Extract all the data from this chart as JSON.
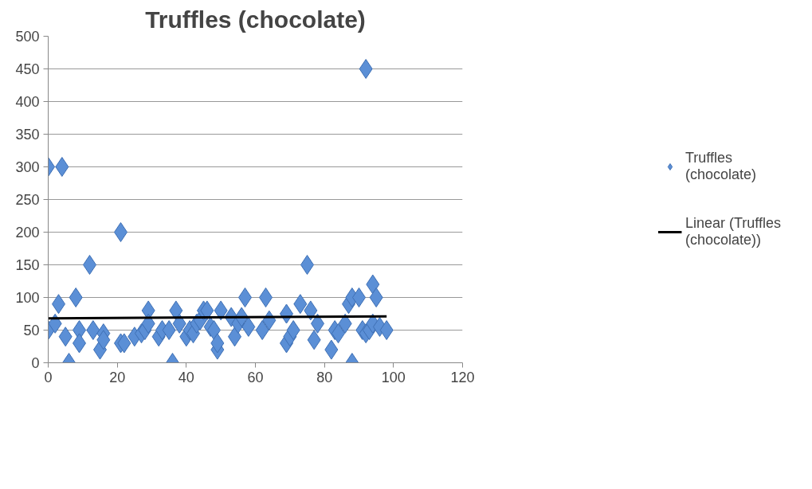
{
  "chart_data": {
    "type": "scatter",
    "title": "Truffles (chocolate)",
    "xlim": [
      0,
      120
    ],
    "xticks": [
      0,
      20,
      40,
      60,
      80,
      100,
      120
    ],
    "ylim": [
      0,
      500
    ],
    "yticks": [
      0,
      50,
      100,
      150,
      200,
      250,
      300,
      350,
      400,
      450,
      500
    ],
    "grid": "y",
    "legend": "right",
    "marker": "diamond",
    "series": [
      {
        "name": "Truffles (chocolate)",
        "color": "#5b8fd6",
        "x": [
          0,
          0,
          2,
          3,
          4,
          5,
          6,
          8,
          9,
          9,
          12,
          13,
          15,
          16,
          16,
          21,
          21,
          22,
          25,
          27,
          28,
          29,
          29,
          32,
          33,
          35,
          36,
          37,
          38,
          40,
          41,
          42,
          43,
          44,
          45,
          46,
          47,
          48,
          49,
          49,
          50,
          53,
          54,
          55,
          56,
          57,
          58,
          62,
          63,
          64,
          69,
          69,
          70,
          71,
          73,
          75,
          76,
          77,
          78,
          82,
          83,
          84,
          86,
          87,
          88,
          88,
          90,
          91,
          92,
          92,
          93,
          94,
          94,
          95,
          96,
          98
        ],
        "values": [
          300,
          50,
          60,
          90,
          300,
          40,
          0,
          100,
          50,
          30,
          150,
          50,
          20,
          45,
          35,
          200,
          30,
          30,
          40,
          45,
          50,
          80,
          60,
          40,
          50,
          50,
          0,
          80,
          60,
          40,
          50,
          45,
          60,
          65,
          80,
          80,
          55,
          50,
          20,
          30,
          80,
          70,
          40,
          60,
          70,
          100,
          55,
          50,
          100,
          65,
          75,
          30,
          40,
          50,
          90,
          150,
          80,
          35,
          60,
          20,
          50,
          45,
          60,
          90,
          0,
          100,
          100,
          50,
          450,
          45,
          50,
          120,
          60,
          100,
          55,
          50
        ]
      },
      {
        "name": "Linear (Truffles (chocolate))",
        "color": "#000000",
        "type": "line",
        "marker": "none",
        "line_style": "solid",
        "x": [
          0,
          98
        ],
        "values": [
          68,
          71
        ]
      }
    ]
  }
}
